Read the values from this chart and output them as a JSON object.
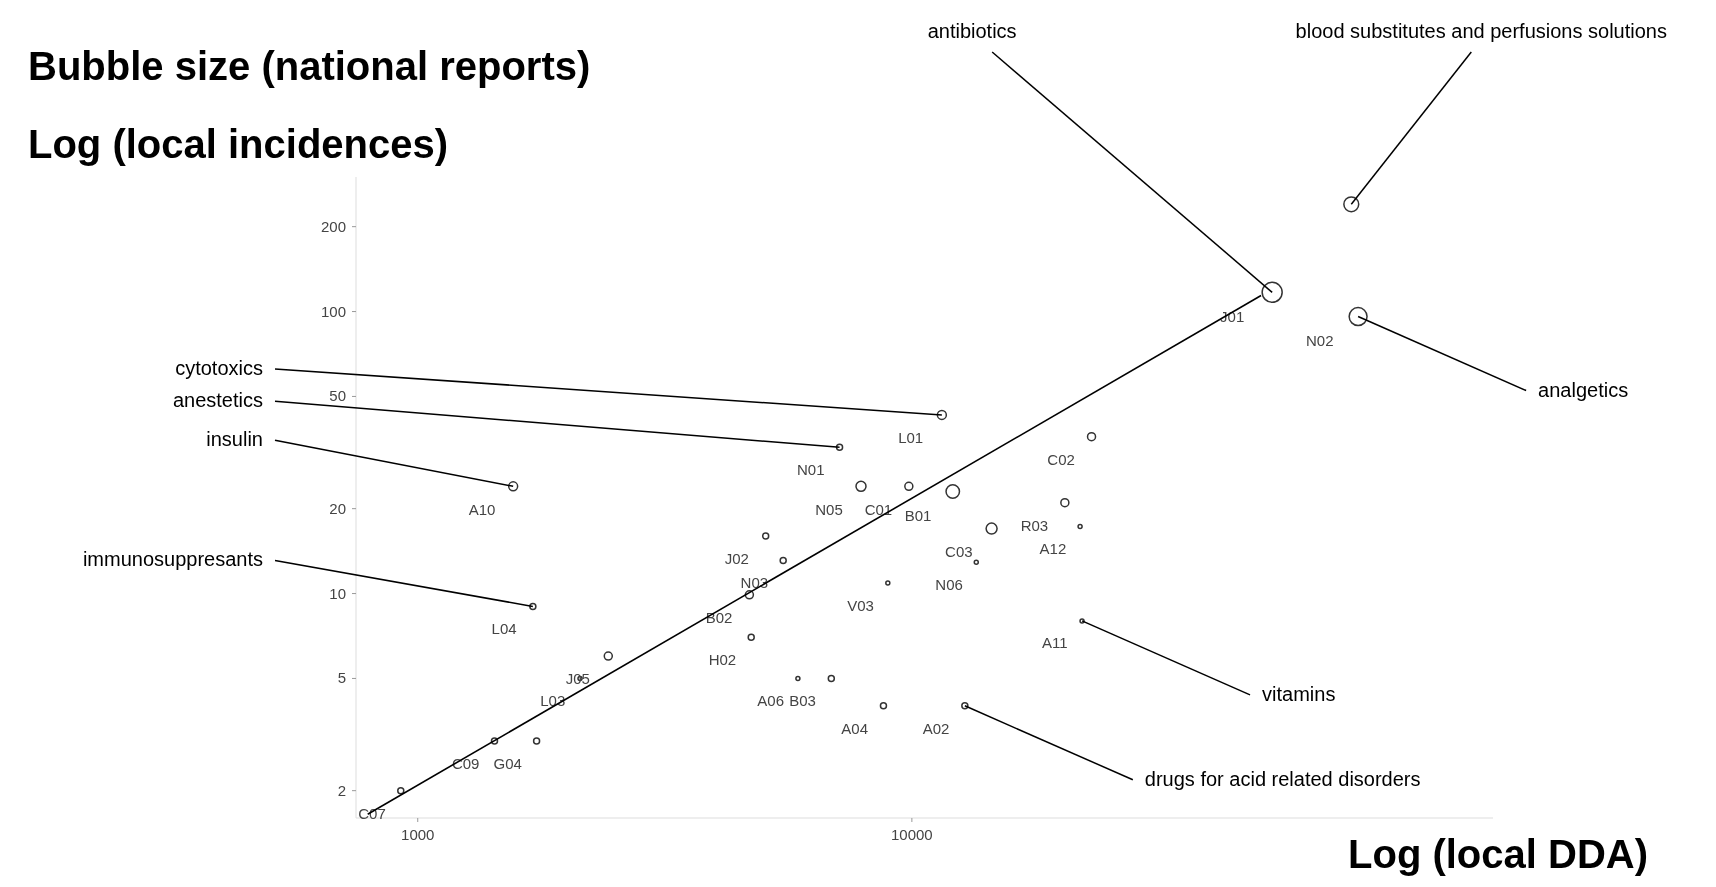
{
  "chart_data": {
    "type": "bubble",
    "title": "Bubble size (national reports)",
    "xlabel": "Log (local DDA)",
    "ylabel": "Log (local incidences)",
    "log": "xy",
    "xlim": [
      750,
      150000
    ],
    "ylim": [
      1.6,
      300
    ],
    "xticks": [
      1000,
      10000
    ],
    "yticks": [
      2,
      5,
      10,
      20,
      50,
      100,
      200
    ],
    "series": [
      {
        "color": "#333333",
        "x": [
          924,
          1430,
          1740,
          2130,
          2430,
          1710,
          1560,
          4690,
          4730,
          5060,
          5490,
          5880,
          6870,
          8760,
          12800,
          8940,
          13500,
          7140,
          11500,
          7890,
          9860,
          12100,
          14500,
          20400,
          21900,
          23100,
          22100,
          53600,
          80000,
          77500
        ],
        "values": [
          2.0,
          3.0,
          3.0,
          5.0,
          6.0,
          9.0,
          24,
          9.9,
          7.0,
          16,
          13.1,
          5.0,
          5.0,
          4.0,
          4.0,
          10.9,
          12.9,
          33,
          43,
          24,
          24,
          23,
          17,
          21,
          17.3,
          36,
          8.0,
          117,
          96,
          240
        ],
        "sizes": [
          0.09,
          0.09,
          0.09,
          0.04,
          0.16,
          0.09,
          0.2,
          0.16,
          0.09,
          0.09,
          0.09,
          0.04,
          0.09,
          0.09,
          0.09,
          0.04,
          0.04,
          0.09,
          0.2,
          0.25,
          0.16,
          0.45,
          0.3,
          0.16,
          0.04,
          0.16,
          0.04,
          1,
          0.8,
          0.55
        ],
        "value_labels": [
          "C07",
          "C09",
          "G04",
          "L03",
          "J05",
          "L04",
          "A10",
          "B02",
          "H02",
          "J02",
          "N03",
          "A06",
          "B03",
          "A04",
          "A02",
          "V03",
          "N06",
          "N01",
          "L01",
          "N05",
          "C01",
          "B01",
          "C03",
          "R03",
          "A12",
          "C02",
          "A11",
          "J01",
          "N02",
          null
        ]
      },
      {
        "type": "line",
        "color": "#000000",
        "x": [
          792,
          50900
        ],
        "values": [
          1.65,
          114
        ]
      }
    ],
    "annotations": [
      {
        "text": "cytotoxics",
        "x": 11500,
        "y": 43
      },
      {
        "text": "anestetics",
        "x": 7140,
        "y": 33
      },
      {
        "text": "insulin",
        "x": 1560,
        "y": 24
      },
      {
        "text": "immunosuppresants",
        "x": 1710,
        "y": 9
      },
      {
        "text": "vitamins",
        "x": 22100,
        "y": 8.0
      },
      {
        "text": "drugs for acid related disorders",
        "x": 12800,
        "y": 4.0
      },
      {
        "text": "analgetics",
        "x": 80000,
        "y": 96
      },
      {
        "text": "antibiotics",
        "x": 53600,
        "y": 117
      },
      {
        "text": "blood substitutes and perfusions solutions",
        "x": 77500,
        "y": 240
      }
    ]
  }
}
